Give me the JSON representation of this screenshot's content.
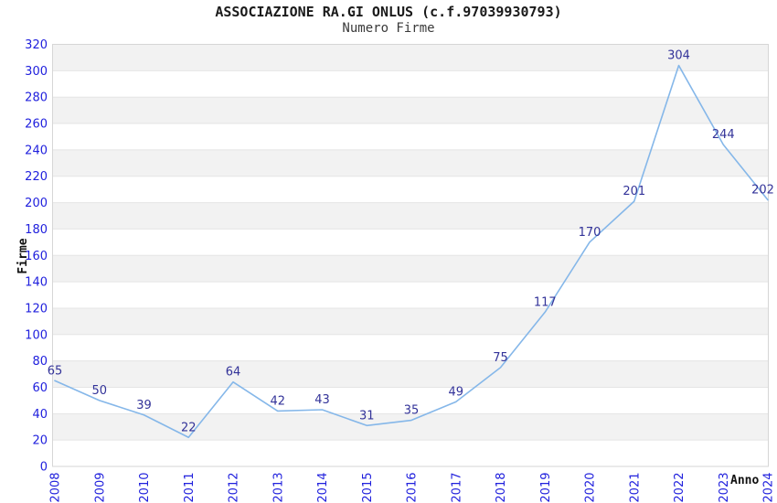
{
  "chart_data": {
    "type": "line",
    "title": "ASSOCIAZIONE RA.GI ONLUS (c.f.97039930793)",
    "subtitle": "Numero Firme",
    "xlabel": "Anno",
    "ylabel": "Firme",
    "categories": [
      "2008",
      "2009",
      "2010",
      "2011",
      "2012",
      "2013",
      "2014",
      "2015",
      "2016",
      "2017",
      "2018",
      "2019",
      "2020",
      "2021",
      "2022",
      "2023",
      "2024"
    ],
    "series": [
      {
        "name": "Numero Firme",
        "values": [
          65,
          50,
          39,
          22,
          64,
          42,
          43,
          31,
          35,
          49,
          75,
          117,
          170,
          201,
          304,
          244,
          202
        ]
      }
    ],
    "ylim": [
      0,
      320
    ],
    "ytick_step": 20,
    "grid": "horizontal-gridlines-with-alternating-bands",
    "legend": "none",
    "data_labels": "shown-above-points",
    "x_tick_rotation": -90,
    "colors": {
      "line": "#85b7e9",
      "tick_labels": "#2020dd",
      "data_labels": "#333399",
      "band_fill": "#f2f2f2",
      "gridline": "#e4e4e4",
      "plot_border": "#d6d6d6",
      "title": "#1a1a1a",
      "subtitle": "#3a3a3a",
      "axis_titles": "#111111",
      "background": "#ffffff"
    }
  }
}
